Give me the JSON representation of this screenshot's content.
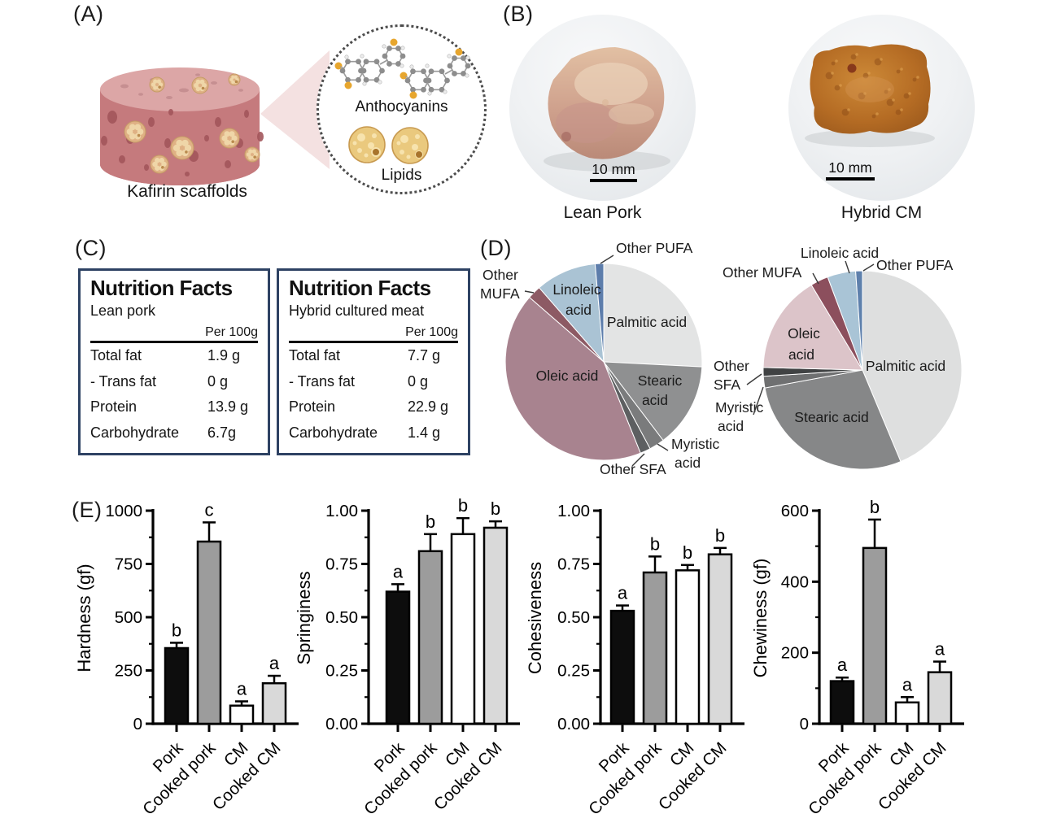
{
  "figure": {
    "panel_tags": {
      "a": "(A)",
      "b": "(B)",
      "c": "(C)",
      "d": "(D)",
      "e": "(E)"
    }
  },
  "panel_a": {
    "scaffold_caption": "Kafirin scaffolds",
    "inset": {
      "anthocyanins_label": "Anthocyanins",
      "lipids_label": "Lipids"
    }
  },
  "panel_b": {
    "photos": [
      {
        "caption": "Lean Pork",
        "scale_bar_label": "10 mm"
      },
      {
        "caption": "Hybrid CM",
        "scale_bar_label": "10 mm"
      }
    ]
  },
  "nutrition": {
    "border_color": "#2e4263",
    "tables": [
      {
        "title": "Nutrition Facts",
        "subtitle": "Lean pork",
        "unit_header": "Per 100g",
        "rows": [
          [
            "Total fat",
            "1.9 g"
          ],
          [
            "- Trans fat",
            "0 g"
          ],
          [
            "Protein",
            "13.9 g"
          ],
          [
            "Carbohydrate",
            "6.7g"
          ]
        ]
      },
      {
        "title": "Nutrition Facts",
        "subtitle": "Hybrid cultured meat",
        "unit_header": "Per 100g",
        "rows": [
          [
            "Total fat",
            "7.7 g"
          ],
          [
            "- Trans fat",
            "0 g"
          ],
          [
            "Protein",
            "22.9 g"
          ],
          [
            "Carbohydrate",
            "1.4 g"
          ]
        ]
      }
    ]
  },
  "chart_data": [
    {
      "type": "pie",
      "panel": "D",
      "sample": "Lean Pork",
      "labels": [
        "Palmitic acid",
        "Stearic acid",
        "Myristic acid",
        "Other SFA",
        "Oleic acid",
        "Other MUFA",
        "Linoleic acid",
        "Other PUFA"
      ],
      "values": [
        25.8,
        13.9,
        2.5,
        1.7,
        42.5,
        2.2,
        10.0,
        1.4
      ],
      "colors": [
        "#e3e4e4",
        "#8f9091",
        "#7a7b7c",
        "#5d5f61",
        "#a8838f",
        "#8d5a64",
        "#aac3d4",
        "#5d7dab"
      ]
    },
    {
      "type": "pie",
      "panel": "D",
      "sample": "Hybrid CM",
      "labels": [
        "Palmitic acid",
        "Stearic acid",
        "Myristic acid",
        "Other SFA",
        "Oleic acid",
        "Other MUFA",
        "Linoleic acid",
        "Other PUFA"
      ],
      "values": [
        43.7,
        28.4,
        1.9,
        1.4,
        16.0,
        2.9,
        4.6,
        1.1
      ],
      "colors": [
        "#dedfdf",
        "#868788",
        "#6f7071",
        "#404243",
        "#dcc4c9",
        "#8c4f5d",
        "#a9c4d6",
        "#5e80ac"
      ]
    },
    {
      "type": "bar",
      "panel": "E",
      "ylabel": "Hardness (gf)",
      "categories": [
        "Pork",
        "Cooked pork",
        "CM",
        "Cooked CM"
      ],
      "values": [
        355,
        855,
        85,
        190
      ],
      "errors": [
        25,
        90,
        20,
        35
      ],
      "sig_letters": [
        "b",
        "c",
        "a",
        "a"
      ],
      "ylim": [
        0,
        1000
      ],
      "ytick_step": 250,
      "minor_step": 125,
      "tick_decimals": 0,
      "bar_colors": [
        "#0d0d0d",
        "#9c9c9c",
        "#ffffff",
        "#d9d9d9"
      ]
    },
    {
      "type": "bar",
      "panel": "E",
      "ylabel": "Springiness",
      "categories": [
        "Pork",
        "Cooked pork",
        "CM",
        "Cooked CM"
      ],
      "values": [
        0.62,
        0.81,
        0.89,
        0.92
      ],
      "errors": [
        0.035,
        0.08,
        0.075,
        0.03
      ],
      "sig_letters": [
        "a",
        "b",
        "b",
        "b"
      ],
      "ylim": [
        0,
        1
      ],
      "ytick_step": 0.25,
      "minor_step": 0.125,
      "tick_decimals": 2,
      "bar_colors": [
        "#0d0d0d",
        "#9c9c9c",
        "#ffffff",
        "#d9d9d9"
      ]
    },
    {
      "type": "bar",
      "panel": "E",
      "ylabel": "Cohesiveness",
      "categories": [
        "Pork",
        "Cooked pork",
        "CM",
        "Cooked CM"
      ],
      "values": [
        0.53,
        0.71,
        0.72,
        0.795
      ],
      "errors": [
        0.025,
        0.075,
        0.025,
        0.03
      ],
      "sig_letters": [
        "a",
        "b",
        "b",
        "b"
      ],
      "ylim": [
        0,
        1
      ],
      "ytick_step": 0.25,
      "minor_step": 0.125,
      "tick_decimals": 2,
      "bar_colors": [
        "#0d0d0d",
        "#9c9c9c",
        "#ffffff",
        "#d9d9d9"
      ]
    },
    {
      "type": "bar",
      "panel": "E",
      "ylabel": "Chewiness (gf)",
      "categories": [
        "Pork",
        "Cooked pork",
        "CM",
        "Cooked CM"
      ],
      "values": [
        120,
        495,
        60,
        145
      ],
      "errors": [
        10,
        80,
        15,
        30
      ],
      "sig_letters": [
        "a",
        "b",
        "a",
        "a"
      ],
      "ylim": [
        0,
        600
      ],
      "ytick_step": 200,
      "minor_step": 100,
      "tick_decimals": 0,
      "bar_colors": [
        "#0d0d0d",
        "#9c9c9c",
        "#ffffff",
        "#d9d9d9"
      ]
    }
  ]
}
